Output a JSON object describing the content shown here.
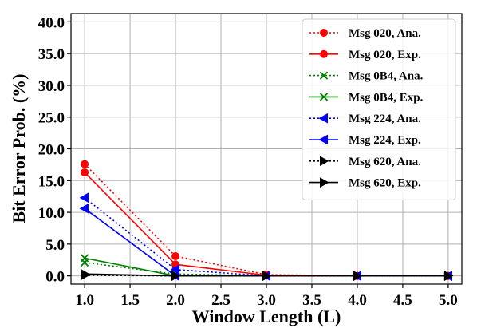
{
  "chart_data": {
    "type": "line",
    "xlabel": "Window Length (L)",
    "ylabel": "Bit Error Prob. (%)",
    "xlim": [
      0.85,
      5.15
    ],
    "ylim": [
      -1.3,
      41.3
    ],
    "xticks": [
      "1.0",
      "1.5",
      "2.0",
      "2.5",
      "3.0",
      "3.5",
      "4.0",
      "4.5",
      "5.0"
    ],
    "yticks": [
      "0.0",
      "5.0",
      "10.0",
      "15.0",
      "20.0",
      "25.0",
      "30.0",
      "35.0",
      "40.0"
    ],
    "grid": true,
    "legend_position": "top-right",
    "x": [
      1,
      2,
      3,
      4,
      5
    ],
    "series": [
      {
        "name": "Msg 020, Ana.",
        "color": "#ff0000",
        "linestyle": "dotted",
        "marker": "circle",
        "values": [
          17.6,
          3.1,
          0.2,
          0.0,
          0.0
        ]
      },
      {
        "name": "Msg 020, Exp.",
        "color": "#ff0000",
        "linestyle": "solid",
        "marker": "circle",
        "values": [
          16.3,
          1.8,
          0.1,
          0.0,
          0.0
        ]
      },
      {
        "name": "Msg 0B4, Ana.",
        "color": "#008000",
        "linestyle": "dotted",
        "marker": "x",
        "values": [
          2.1,
          0.3,
          0.0,
          0.0,
          0.0
        ]
      },
      {
        "name": "Msg 0B4, Exp.",
        "color": "#008000",
        "linestyle": "solid",
        "marker": "x",
        "values": [
          2.8,
          0.0,
          0.0,
          0.0,
          0.0
        ]
      },
      {
        "name": "Msg 224, Ana.",
        "color": "#0000ff",
        "linestyle": "dotted",
        "marker": "triangle-left",
        "values": [
          12.3,
          1.0,
          0.0,
          0.0,
          0.0
        ]
      },
      {
        "name": "Msg 224, Exp.",
        "color": "#0000ff",
        "linestyle": "solid",
        "marker": "triangle-left",
        "values": [
          10.6,
          0.0,
          0.0,
          0.0,
          0.0
        ]
      },
      {
        "name": "Msg 620, Ana.",
        "color": "#000000",
        "linestyle": "dotted",
        "marker": "triangle-right",
        "values": [
          0.1,
          0.0,
          0.0,
          0.0,
          0.0
        ]
      },
      {
        "name": "Msg 620, Exp.",
        "color": "#000000",
        "linestyle": "solid",
        "marker": "triangle-right",
        "values": [
          0.3,
          0.0,
          0.0,
          0.0,
          0.0
        ]
      }
    ]
  }
}
